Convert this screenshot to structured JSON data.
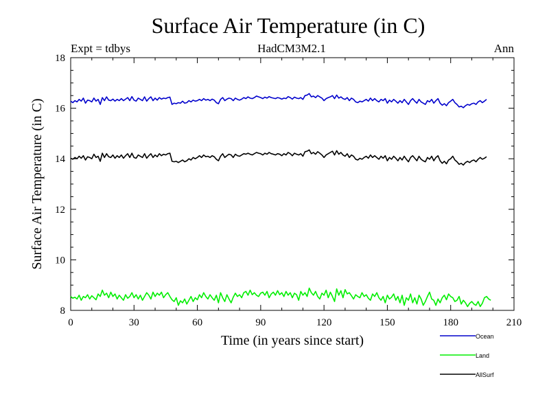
{
  "chart_data": {
    "type": "line",
    "title": "Surface Air Temperature (in C)",
    "subtitle_left": "Expt = tdbys",
    "subtitle_center": "HadCM3M2.1",
    "subtitle_right": "Ann",
    "xlabel": "Time (in years since start)",
    "ylabel": "Surface Air Temperature (in C)",
    "xlim": [
      0,
      210
    ],
    "ylim": [
      8,
      18
    ],
    "xticks": [
      0,
      30,
      60,
      90,
      120,
      150,
      180,
      210
    ],
    "yticks": [
      8,
      10,
      12,
      14,
      16,
      18
    ],
    "grid": false,
    "legend_position": "bottom-right",
    "series": [
      {
        "name": "Ocean",
        "color": "#0000cc",
        "x_start": 0,
        "x_step": 1,
        "values": [
          16.28,
          16.22,
          16.3,
          16.25,
          16.35,
          16.28,
          16.4,
          16.2,
          16.32,
          16.3,
          16.25,
          16.4,
          16.28,
          16.35,
          16.15,
          16.42,
          16.3,
          16.45,
          16.32,
          16.3,
          16.36,
          16.28,
          16.35,
          16.3,
          16.38,
          16.3,
          16.36,
          16.42,
          16.3,
          16.46,
          16.32,
          16.28,
          16.4,
          16.35,
          16.3,
          16.45,
          16.28,
          16.38,
          16.45,
          16.3,
          16.4,
          16.32,
          16.42,
          16.36,
          16.4,
          16.38,
          16.42,
          16.44,
          16.15,
          16.2,
          16.18,
          16.22,
          16.2,
          16.28,
          16.2,
          16.22,
          16.3,
          16.25,
          16.32,
          16.28,
          16.3,
          16.35,
          16.3,
          16.38,
          16.32,
          16.35,
          16.3,
          16.36,
          16.32,
          16.22,
          16.18,
          16.35,
          16.42,
          16.3,
          16.36,
          16.4,
          16.38,
          16.3,
          16.4,
          16.35,
          16.32,
          16.36,
          16.42,
          16.38,
          16.45,
          16.4,
          16.38,
          16.42,
          16.48,
          16.45,
          16.42,
          16.38,
          16.44,
          16.4,
          16.46,
          16.42,
          16.4,
          16.38,
          16.42,
          16.4,
          16.36,
          16.4,
          16.38,
          16.46,
          16.42,
          16.36,
          16.44,
          16.4,
          16.38,
          16.42,
          16.35,
          16.5,
          16.52,
          16.58,
          16.45,
          16.48,
          16.42,
          16.5,
          16.45,
          16.4,
          16.3,
          16.38,
          16.42,
          16.45,
          16.5,
          16.38,
          16.52,
          16.4,
          16.45,
          16.38,
          16.35,
          16.42,
          16.3,
          16.4,
          16.35,
          16.25,
          16.22,
          16.28,
          16.25,
          16.3,
          16.35,
          16.28,
          16.4,
          16.3,
          16.38,
          16.3,
          16.25,
          16.35,
          16.3,
          16.38,
          16.2,
          16.32,
          16.25,
          16.35,
          16.28,
          16.2,
          16.3,
          16.22,
          16.35,
          16.25,
          16.15,
          16.3,
          16.38,
          16.28,
          16.2,
          16.35,
          16.25,
          16.2,
          16.15,
          16.3,
          16.25,
          16.35,
          16.2,
          16.3,
          16.38,
          16.2,
          16.12,
          16.18,
          16.1,
          16.22,
          16.28,
          16.35,
          16.22,
          16.15,
          16.05,
          16.08,
          16.02,
          16.1,
          16.15,
          16.12,
          16.18,
          16.2,
          16.15,
          16.25,
          16.3,
          16.22,
          16.28,
          16.35
        ]
      },
      {
        "name": "Land",
        "color": "#00ee00",
        "x_start": 0,
        "x_step": 1,
        "values": [
          8.55,
          8.48,
          8.52,
          8.45,
          8.6,
          8.4,
          8.55,
          8.5,
          8.62,
          8.45,
          8.58,
          8.5,
          8.42,
          8.65,
          8.55,
          8.8,
          8.6,
          8.68,
          8.5,
          8.72,
          8.55,
          8.65,
          8.45,
          8.6,
          8.5,
          8.4,
          8.62,
          8.48,
          8.55,
          8.7,
          8.5,
          8.62,
          8.45,
          8.6,
          8.4,
          8.55,
          8.7,
          8.6,
          8.45,
          8.72,
          8.55,
          8.68,
          8.6,
          8.72,
          8.5,
          8.62,
          8.7,
          8.55,
          8.42,
          8.35,
          8.5,
          8.2,
          8.38,
          8.3,
          8.45,
          8.25,
          8.4,
          8.55,
          8.35,
          8.5,
          8.42,
          8.62,
          8.5,
          8.7,
          8.55,
          8.45,
          8.62,
          8.5,
          8.4,
          8.6,
          8.3,
          8.7,
          8.5,
          8.35,
          8.62,
          8.45,
          8.3,
          8.52,
          8.68,
          8.55,
          8.62,
          8.5,
          8.7,
          8.75,
          8.6,
          8.8,
          8.62,
          8.7,
          8.6,
          8.55,
          8.68,
          8.72,
          8.6,
          8.75,
          8.5,
          8.65,
          8.72,
          8.6,
          8.78,
          8.62,
          8.7,
          8.55,
          8.75,
          8.6,
          8.7,
          8.5,
          8.68,
          8.62,
          8.4,
          8.75,
          8.6,
          8.7,
          8.55,
          8.88,
          8.7,
          8.6,
          8.75,
          8.55,
          8.45,
          8.68,
          8.6,
          8.8,
          8.5,
          8.72,
          8.55,
          8.35,
          8.85,
          8.6,
          8.78,
          8.5,
          8.82,
          8.65,
          8.7,
          8.58,
          8.45,
          8.62,
          8.55,
          8.5,
          8.7,
          8.55,
          8.62,
          8.48,
          8.4,
          8.65,
          8.55,
          8.7,
          8.5,
          8.4,
          8.55,
          8.3,
          8.6,
          8.45,
          8.52,
          8.65,
          8.4,
          8.55,
          8.3,
          8.6,
          8.2,
          8.5,
          8.4,
          8.65,
          8.3,
          8.5,
          8.25,
          8.6,
          8.45,
          8.2,
          8.35,
          8.55,
          8.72,
          8.45,
          8.4,
          8.2,
          8.45,
          8.3,
          8.5,
          8.6,
          8.42,
          8.65,
          8.55,
          8.5,
          8.35,
          8.4,
          8.55,
          8.25,
          8.4,
          8.3,
          8.15,
          8.28,
          8.35,
          8.25,
          8.2,
          8.35,
          8.15,
          8.28,
          8.5,
          8.55,
          8.45,
          8.4
        ]
      },
      {
        "name": "AllSurf",
        "color": "#000000",
        "x_start": 0,
        "x_step": 1,
        "values": [
          14.02,
          13.98,
          14.05,
          14.0,
          14.1,
          14.02,
          14.12,
          13.95,
          14.08,
          14.05,
          14.0,
          14.18,
          14.05,
          14.1,
          13.9,
          14.22,
          14.05,
          14.2,
          14.08,
          14.05,
          14.15,
          14.02,
          14.12,
          14.05,
          14.15,
          14.02,
          14.12,
          14.2,
          14.05,
          14.22,
          14.05,
          14.02,
          14.15,
          14.1,
          14.05,
          14.2,
          14.02,
          14.12,
          14.2,
          14.05,
          14.15,
          14.08,
          14.2,
          14.12,
          14.18,
          14.15,
          14.2,
          14.22,
          13.9,
          13.88,
          13.9,
          13.85,
          13.9,
          13.95,
          13.88,
          13.92,
          14.0,
          13.95,
          14.05,
          14.0,
          14.05,
          14.12,
          14.05,
          14.15,
          14.08,
          14.1,
          14.05,
          14.12,
          14.08,
          13.98,
          13.92,
          14.1,
          14.2,
          14.05,
          14.12,
          14.18,
          14.15,
          14.05,
          14.18,
          14.12,
          14.1,
          14.15,
          14.2,
          14.18,
          14.22,
          14.18,
          14.15,
          14.2,
          14.25,
          14.22,
          14.2,
          14.15,
          14.22,
          14.18,
          14.25,
          14.2,
          14.18,
          14.15,
          14.2,
          14.18,
          14.12,
          14.2,
          14.15,
          14.25,
          14.2,
          14.12,
          14.22,
          14.18,
          14.15,
          14.2,
          14.1,
          14.28,
          14.3,
          14.35,
          14.2,
          14.25,
          14.18,
          14.28,
          14.22,
          14.15,
          14.05,
          14.15,
          14.2,
          14.25,
          14.3,
          14.15,
          14.32,
          14.18,
          14.25,
          14.15,
          14.1,
          14.2,
          14.05,
          14.15,
          14.1,
          13.98,
          13.95,
          14.02,
          13.98,
          14.05,
          14.1,
          14.02,
          14.15,
          14.05,
          14.12,
          14.05,
          13.98,
          14.1,
          14.02,
          14.12,
          13.92,
          14.05,
          13.98,
          14.1,
          14.02,
          13.92,
          14.05,
          13.95,
          14.1,
          13.98,
          13.88,
          14.05,
          14.12,
          14.02,
          13.92,
          14.1,
          13.98,
          13.92,
          13.88,
          14.05,
          13.98,
          14.1,
          13.92,
          14.05,
          14.12,
          13.92,
          13.82,
          13.9,
          13.8,
          13.95,
          14.0,
          14.1,
          13.95,
          13.88,
          13.78,
          13.82,
          13.75,
          13.85,
          13.9,
          13.85,
          13.92,
          13.95,
          13.88,
          13.98,
          14.05,
          13.98,
          14.02,
          14.08
        ]
      }
    ]
  }
}
